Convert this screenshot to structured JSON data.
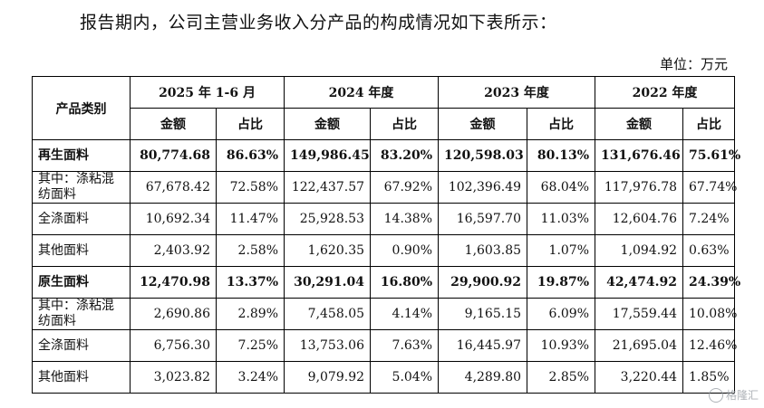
{
  "intro_text": "报告期内，公司主营业务收入分产品的构成情况如下表所示：",
  "unit_label": "单位：万元",
  "table": {
    "category_header": "产品类别",
    "periods": [
      "2025 年 1-6 月",
      "2024 年度",
      "2023 年度",
      "2022 年度"
    ],
    "amount_header": "金额",
    "share_header": "占比",
    "rows": [
      {
        "label": "再生面料",
        "bold": true,
        "values": [
          "80,774.68",
          "86.63%",
          "149,986.45",
          "83.20%",
          "120,598.03",
          "80.13%",
          "131,676.46",
          "75.61%"
        ]
      },
      {
        "label": "其中：涤粘混纺面料",
        "bold": false,
        "values": [
          "67,678.42",
          "72.58%",
          "122,437.57",
          "67.92%",
          "102,396.49",
          "68.04%",
          "117,976.78",
          "67.74%"
        ]
      },
      {
        "label": "全涤面料",
        "bold": false,
        "values": [
          "10,692.34",
          "11.47%",
          "25,928.53",
          "14.38%",
          "16,597.70",
          "11.03%",
          "12,604.76",
          "7.24%"
        ]
      },
      {
        "label": "其他面料",
        "bold": false,
        "values": [
          "2,403.92",
          "2.58%",
          "1,620.35",
          "0.90%",
          "1,603.85",
          "1.07%",
          "1,094.92",
          "0.63%"
        ]
      },
      {
        "label": "原生面料",
        "bold": true,
        "values": [
          "12,470.98",
          "13.37%",
          "30,291.04",
          "16.80%",
          "29,900.92",
          "19.87%",
          "42,474.92",
          "24.39%"
        ]
      },
      {
        "label": "其中：涤粘混纺面料",
        "bold": false,
        "values": [
          "2,690.86",
          "2.89%",
          "7,458.05",
          "4.14%",
          "9,165.15",
          "6.09%",
          "17,559.44",
          "10.08%"
        ]
      },
      {
        "label": "全涤面料",
        "bold": false,
        "values": [
          "6,756.30",
          "7.25%",
          "13,753.06",
          "7.63%",
          "16,445.97",
          "10.93%",
          "21,695.04",
          "12.46%"
        ]
      },
      {
        "label": "其他面料",
        "bold": false,
        "values": [
          "3,023.82",
          "3.24%",
          "9,079.92",
          "5.04%",
          "4,289.80",
          "2.85%",
          "3,220.44",
          "1.85%"
        ]
      }
    ]
  },
  "watermark": {
    "text": "格隆汇",
    "icon": "watermark-logo-icon"
  }
}
